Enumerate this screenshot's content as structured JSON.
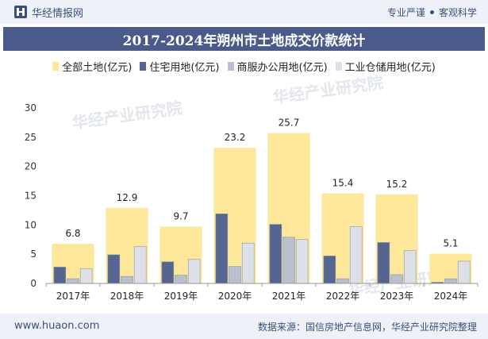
{
  "header": {
    "brand": "华经情报网",
    "tagline_left": "专业严谨",
    "tagline_right": "客观科学",
    "title": "2017-2024年朔州市土地成交价款统计"
  },
  "footer": {
    "site": "www.huaon.com",
    "source": "数据来源：国信房地产信息网，华经产业研究院整理"
  },
  "watermark": "华经产业研究院",
  "colors": {
    "total": "#fde79a",
    "residential": "#55658f",
    "commercial": "#b9bfcd",
    "industrial": "#dde0e8"
  },
  "chart_data": {
    "type": "bar",
    "categories": [
      "2017年",
      "2018年",
      "2019年",
      "2020年",
      "2021年",
      "2022年",
      "2023年",
      "2024年"
    ],
    "ylim": [
      0,
      30
    ],
    "yticks": [
      0,
      5,
      10,
      15,
      20,
      25,
      30
    ],
    "series": [
      {
        "name": "全部土地(亿元)",
        "values": [
          6.8,
          12.9,
          9.7,
          23.2,
          25.7,
          15.4,
          15.2,
          5.1
        ],
        "labels": [
          "6.8",
          "12.9",
          "9.7",
          "23.2",
          "25.7",
          "15.4",
          "15.2",
          "5.1"
        ]
      },
      {
        "name": "住宅用地(亿元)",
        "values": [
          2.8,
          4.9,
          3.7,
          11.9,
          10.1,
          4.7,
          7.0,
          0.2
        ]
      },
      {
        "name": "商服办公用地(亿元)",
        "values": [
          0.8,
          1.2,
          1.4,
          2.9,
          7.9,
          0.8,
          1.5,
          0.8
        ]
      },
      {
        "name": "工业仓储用地(亿元)",
        "values": [
          2.5,
          6.3,
          4.1,
          6.9,
          7.5,
          9.7,
          5.6,
          3.8
        ]
      }
    ]
  }
}
